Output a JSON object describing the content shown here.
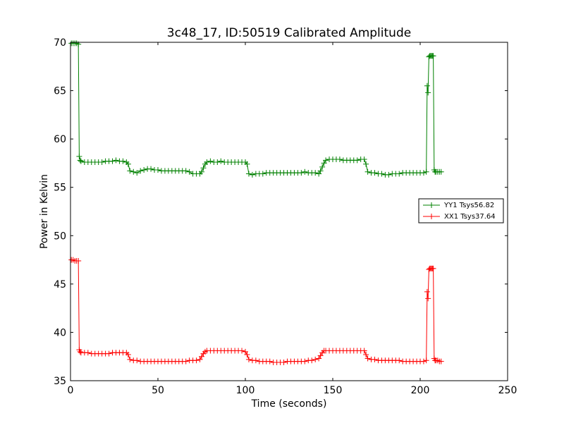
{
  "chart_data": {
    "type": "line",
    "title": "3c48_17, ID:50519 Calibrated Amplitude",
    "xlabel": "Time (seconds)",
    "ylabel": "Power in Kelvin",
    "xlim": [
      0,
      250
    ],
    "ylim": [
      35,
      70
    ],
    "xticks": [
      0,
      50,
      100,
      150,
      200,
      250
    ],
    "yticks": [
      35,
      40,
      45,
      50,
      55,
      60,
      65,
      70
    ],
    "grid": false,
    "legend_position": "right",
    "series": [
      {
        "name": "YY1 Tsys56.82",
        "color": "#008000",
        "marker": "+",
        "points": [
          [
            0.5,
            69.9
          ],
          [
            1.5,
            69.9
          ],
          [
            2.5,
            69.9
          ],
          [
            3.5,
            69.9
          ],
          [
            4.5,
            69.8
          ],
          [
            5,
            58.2
          ],
          [
            5.5,
            57.8
          ],
          [
            6,
            57.7
          ],
          [
            8,
            57.6
          ],
          [
            10,
            57.6
          ],
          [
            12,
            57.6
          ],
          [
            14,
            57.6
          ],
          [
            16,
            57.6
          ],
          [
            18,
            57.6
          ],
          [
            20,
            57.7
          ],
          [
            22,
            57.7
          ],
          [
            24,
            57.7
          ],
          [
            26,
            57.8
          ],
          [
            28,
            57.7
          ],
          [
            30,
            57.7
          ],
          [
            32,
            57.6
          ],
          [
            33,
            57.4
          ],
          [
            34,
            56.7
          ],
          [
            36,
            56.6
          ],
          [
            38,
            56.5
          ],
          [
            40,
            56.7
          ],
          [
            42,
            56.8
          ],
          [
            44,
            56.9
          ],
          [
            46,
            56.9
          ],
          [
            48,
            56.8
          ],
          [
            50,
            56.8
          ],
          [
            52,
            56.7
          ],
          [
            54,
            56.7
          ],
          [
            56,
            56.7
          ],
          [
            58,
            56.7
          ],
          [
            60,
            56.7
          ],
          [
            62,
            56.7
          ],
          [
            64,
            56.7
          ],
          [
            66,
            56.7
          ],
          [
            68,
            56.6
          ],
          [
            70,
            56.4
          ],
          [
            72,
            56.4
          ],
          [
            74,
            56.4
          ],
          [
            75,
            56.6
          ],
          [
            76,
            57.0
          ],
          [
            77,
            57.4
          ],
          [
            78,
            57.6
          ],
          [
            80,
            57.7
          ],
          [
            82,
            57.6
          ],
          [
            84,
            57.6
          ],
          [
            86,
            57.7
          ],
          [
            88,
            57.6
          ],
          [
            90,
            57.6
          ],
          [
            92,
            57.6
          ],
          [
            94,
            57.6
          ],
          [
            96,
            57.6
          ],
          [
            98,
            57.6
          ],
          [
            100,
            57.6
          ],
          [
            101,
            57.4
          ],
          [
            102,
            56.4
          ],
          [
            104,
            56.3
          ],
          [
            106,
            56.4
          ],
          [
            108,
            56.4
          ],
          [
            110,
            56.4
          ],
          [
            112,
            56.5
          ],
          [
            114,
            56.5
          ],
          [
            116,
            56.5
          ],
          [
            118,
            56.5
          ],
          [
            120,
            56.5
          ],
          [
            122,
            56.5
          ],
          [
            124,
            56.5
          ],
          [
            126,
            56.5
          ],
          [
            128,
            56.5
          ],
          [
            130,
            56.5
          ],
          [
            132,
            56.5
          ],
          [
            134,
            56.6
          ],
          [
            136,
            56.5
          ],
          [
            138,
            56.5
          ],
          [
            140,
            56.5
          ],
          [
            142,
            56.4
          ],
          [
            143,
            56.7
          ],
          [
            144,
            57.1
          ],
          [
            145,
            57.5
          ],
          [
            146,
            57.8
          ],
          [
            148,
            57.9
          ],
          [
            150,
            57.9
          ],
          [
            152,
            57.9
          ],
          [
            154,
            57.9
          ],
          [
            156,
            57.8
          ],
          [
            158,
            57.8
          ],
          [
            160,
            57.8
          ],
          [
            162,
            57.8
          ],
          [
            164,
            57.8
          ],
          [
            166,
            57.9
          ],
          [
            168,
            57.9
          ],
          [
            169,
            57.4
          ],
          [
            170,
            56.6
          ],
          [
            172,
            56.5
          ],
          [
            174,
            56.5
          ],
          [
            176,
            56.4
          ],
          [
            178,
            56.4
          ],
          [
            180,
            56.3
          ],
          [
            182,
            56.3
          ],
          [
            184,
            56.4
          ],
          [
            186,
            56.4
          ],
          [
            188,
            56.4
          ],
          [
            190,
            56.5
          ],
          [
            192,
            56.5
          ],
          [
            194,
            56.5
          ],
          [
            196,
            56.5
          ],
          [
            198,
            56.5
          ],
          [
            200,
            56.5
          ],
          [
            202,
            56.5
          ],
          [
            203.5,
            56.6
          ],
          [
            204,
            65.5
          ],
          [
            204.5,
            64.8
          ],
          [
            205,
            68.5
          ],
          [
            205.5,
            68.6
          ],
          [
            206,
            68.6
          ],
          [
            206.5,
            68.6
          ],
          [
            207,
            68.6
          ],
          [
            207.5,
            68.6
          ],
          [
            208,
            56.8
          ],
          [
            208.5,
            56.6
          ],
          [
            209,
            56.6
          ],
          [
            210,
            56.6
          ],
          [
            211,
            56.6
          ],
          [
            212,
            56.6
          ]
        ]
      },
      {
        "name": "XX1 Tsys37.64",
        "color": "#ff0000",
        "marker": "+",
        "points": [
          [
            0.5,
            47.5
          ],
          [
            1.5,
            47.5
          ],
          [
            2.5,
            47.4
          ],
          [
            3.5,
            47.4
          ],
          [
            4.5,
            47.4
          ],
          [
            5,
            38.2
          ],
          [
            5.5,
            38.0
          ],
          [
            6,
            37.9
          ],
          [
            8,
            37.9
          ],
          [
            10,
            37.9
          ],
          [
            12,
            37.8
          ],
          [
            14,
            37.8
          ],
          [
            16,
            37.8
          ],
          [
            18,
            37.8
          ],
          [
            20,
            37.8
          ],
          [
            22,
            37.8
          ],
          [
            24,
            37.9
          ],
          [
            26,
            37.9
          ],
          [
            28,
            37.9
          ],
          [
            30,
            37.9
          ],
          [
            32,
            37.9
          ],
          [
            33,
            37.7
          ],
          [
            34,
            37.2
          ],
          [
            36,
            37.1
          ],
          [
            38,
            37.1
          ],
          [
            40,
            37.0
          ],
          [
            42,
            37.0
          ],
          [
            44,
            37.0
          ],
          [
            46,
            37.0
          ],
          [
            48,
            37.0
          ],
          [
            50,
            37.0
          ],
          [
            52,
            37.0
          ],
          [
            54,
            37.0
          ],
          [
            56,
            37.0
          ],
          [
            58,
            37.0
          ],
          [
            60,
            37.0
          ],
          [
            62,
            37.0
          ],
          [
            64,
            37.0
          ],
          [
            66,
            37.0
          ],
          [
            68,
            37.1
          ],
          [
            70,
            37.1
          ],
          [
            72,
            37.1
          ],
          [
            74,
            37.2
          ],
          [
            75,
            37.5
          ],
          [
            76,
            37.8
          ],
          [
            77,
            38.0
          ],
          [
            78,
            38.1
          ],
          [
            80,
            38.1
          ],
          [
            82,
            38.1
          ],
          [
            84,
            38.1
          ],
          [
            86,
            38.1
          ],
          [
            88,
            38.1
          ],
          [
            90,
            38.1
          ],
          [
            92,
            38.1
          ],
          [
            94,
            38.1
          ],
          [
            96,
            38.1
          ],
          [
            98,
            38.1
          ],
          [
            100,
            38.0
          ],
          [
            101,
            37.7
          ],
          [
            102,
            37.2
          ],
          [
            104,
            37.1
          ],
          [
            106,
            37.1
          ],
          [
            108,
            37.0
          ],
          [
            110,
            37.0
          ],
          [
            112,
            37.0
          ],
          [
            114,
            37.0
          ],
          [
            116,
            36.9
          ],
          [
            118,
            36.9
          ],
          [
            120,
            36.9
          ],
          [
            122,
            36.9
          ],
          [
            124,
            37.0
          ],
          [
            126,
            37.0
          ],
          [
            128,
            37.0
          ],
          [
            130,
            37.0
          ],
          [
            132,
            37.0
          ],
          [
            134,
            37.0
          ],
          [
            136,
            37.1
          ],
          [
            138,
            37.1
          ],
          [
            140,
            37.2
          ],
          [
            142,
            37.3
          ],
          [
            143,
            37.6
          ],
          [
            144,
            37.9
          ],
          [
            145,
            38.1
          ],
          [
            146,
            38.1
          ],
          [
            148,
            38.1
          ],
          [
            150,
            38.1
          ],
          [
            152,
            38.1
          ],
          [
            154,
            38.1
          ],
          [
            156,
            38.1
          ],
          [
            158,
            38.1
          ],
          [
            160,
            38.1
          ],
          [
            162,
            38.1
          ],
          [
            164,
            38.1
          ],
          [
            166,
            38.1
          ],
          [
            168,
            38.1
          ],
          [
            169,
            37.7
          ],
          [
            170,
            37.3
          ],
          [
            172,
            37.2
          ],
          [
            174,
            37.2
          ],
          [
            176,
            37.1
          ],
          [
            178,
            37.1
          ],
          [
            180,
            37.1
          ],
          [
            182,
            37.1
          ],
          [
            184,
            37.1
          ],
          [
            186,
            37.1
          ],
          [
            188,
            37.1
          ],
          [
            190,
            37.0
          ],
          [
            192,
            37.0
          ],
          [
            194,
            37.0
          ],
          [
            196,
            37.0
          ],
          [
            198,
            37.0
          ],
          [
            200,
            37.0
          ],
          [
            202,
            37.0
          ],
          [
            203.5,
            37.1
          ],
          [
            204,
            44.2
          ],
          [
            204.5,
            43.5
          ],
          [
            205,
            46.5
          ],
          [
            205.5,
            46.6
          ],
          [
            206,
            46.6
          ],
          [
            206.5,
            46.6
          ],
          [
            207,
            46.6
          ],
          [
            207.5,
            46.6
          ],
          [
            208,
            37.3
          ],
          [
            208.5,
            37.1
          ],
          [
            209,
            37.1
          ],
          [
            210,
            37.1
          ],
          [
            211,
            37.0
          ],
          [
            212,
            37.0
          ]
        ]
      }
    ]
  }
}
